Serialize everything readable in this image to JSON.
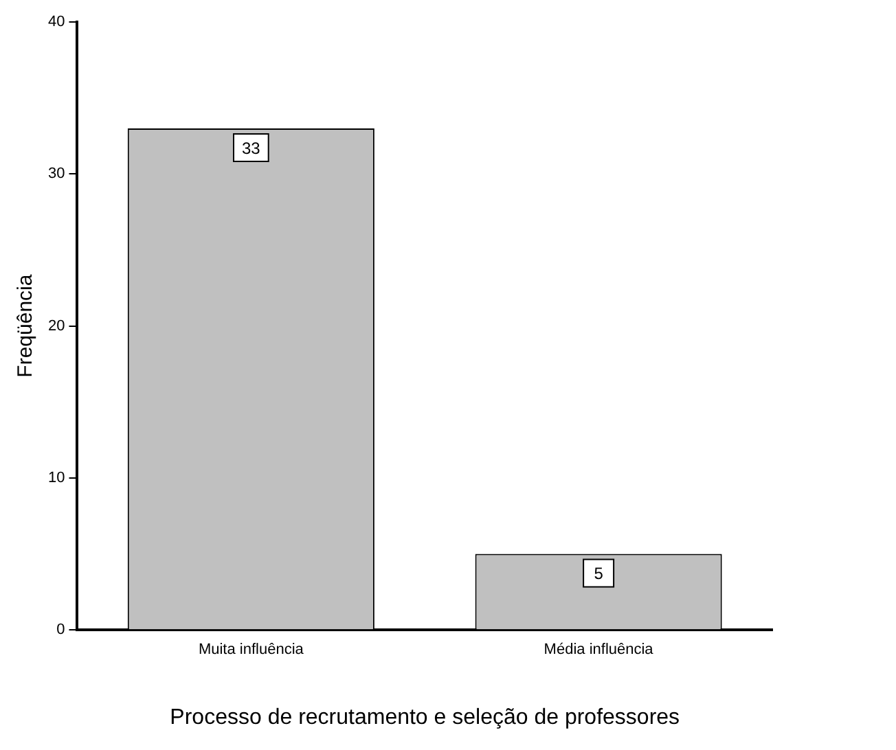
{
  "chart_data": {
    "type": "bar",
    "xlabel": "Processo de recrutamento e seleção de professores",
    "ylabel": "Freqüência",
    "categories": [
      "Muita influência",
      "Média influência"
    ],
    "values": [
      33,
      5
    ],
    "color": "#c0c0c0",
    "ylim": [
      0,
      40
    ],
    "yticks": [
      0,
      10,
      20,
      30,
      40
    ],
    "grid": false,
    "legend": false,
    "data_labels": true
  }
}
